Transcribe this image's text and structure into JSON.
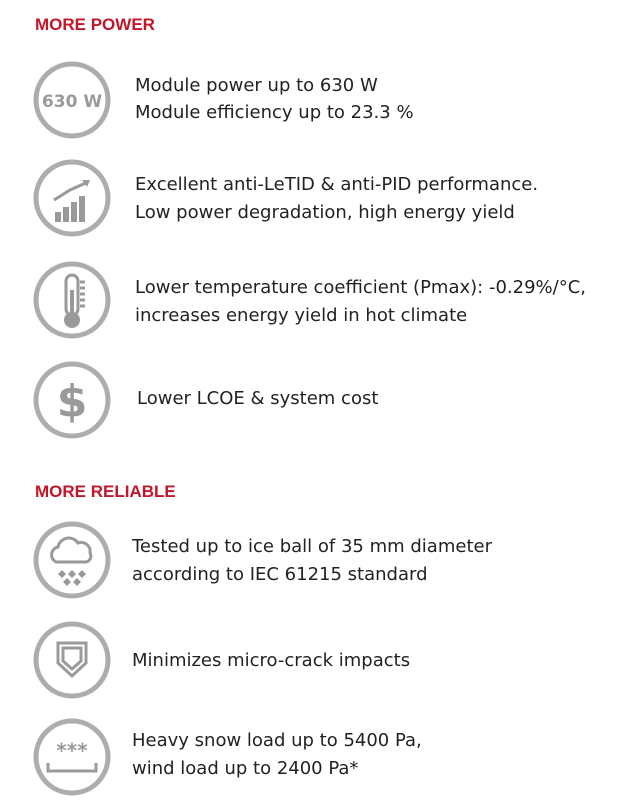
{
  "sections": [
    {
      "title": "MORE POWER",
      "items": [
        {
          "icon_label": "630 W",
          "lines": [
            "Module power up to 630 W",
            "Module efficiency up to 23.3 %"
          ]
        },
        {
          "lines": [
            "Excellent anti-LeTID & anti-PID performance.",
            "Low power degradation, high energy yield"
          ]
        },
        {
          "lines": [
            "Lower temperature coefficient (Pmax): -0.29%/°C,",
            "increases energy yield in hot climate"
          ]
        },
        {
          "icon_label": "$",
          "lines": [
            "Lower LCOE & system cost"
          ]
        }
      ]
    },
    {
      "title": "MORE RELIABLE",
      "items": [
        {
          "lines": [
            "Tested up to ice ball of 35 mm diameter",
            "according to IEC 61215 standard"
          ]
        },
        {
          "lines": [
            "Minimizes micro-crack impacts"
          ]
        },
        {
          "icon_label": "***",
          "lines": [
            "Heavy snow load up to 5400 Pa,",
            "wind load up to 2400 Pa*"
          ]
        }
      ]
    }
  ]
}
